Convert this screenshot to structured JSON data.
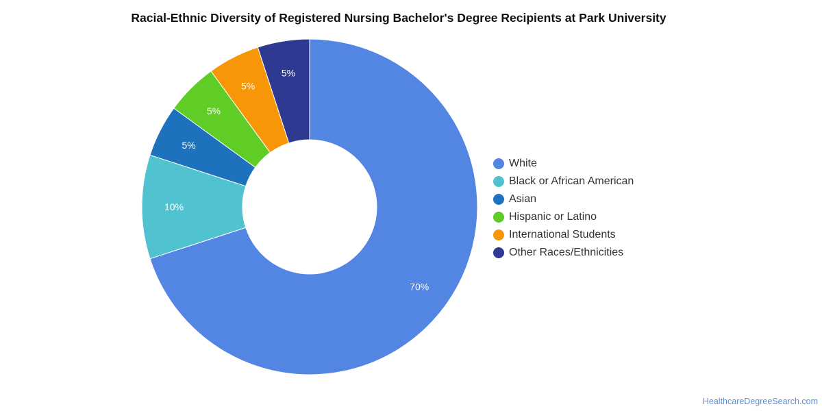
{
  "chart_data": {
    "type": "pie",
    "title": "Racial-Ethnic Diversity of Registered Nursing Bachelor's Degree Recipients at Park University",
    "donut": true,
    "legend_position": "right",
    "slices": [
      {
        "label": "White",
        "value": 70,
        "display": "70%",
        "color": "#5385e3"
      },
      {
        "label": "Black or African American",
        "value": 10,
        "display": "10%",
        "color": "#51c2cf"
      },
      {
        "label": "Asian",
        "value": 5,
        "display": "5%",
        "color": "#1e72bd"
      },
      {
        "label": "Hispanic or Latino",
        "value": 5,
        "display": "5%",
        "color": "#60cc26"
      },
      {
        "label": "International Students",
        "value": 5,
        "display": "5%",
        "color": "#f79607"
      },
      {
        "label": "Other Races/Ethnicities",
        "value": 5,
        "display": "5%",
        "color": "#2e3a92"
      }
    ]
  },
  "credit": "HealthcareDegreeSearch.com"
}
